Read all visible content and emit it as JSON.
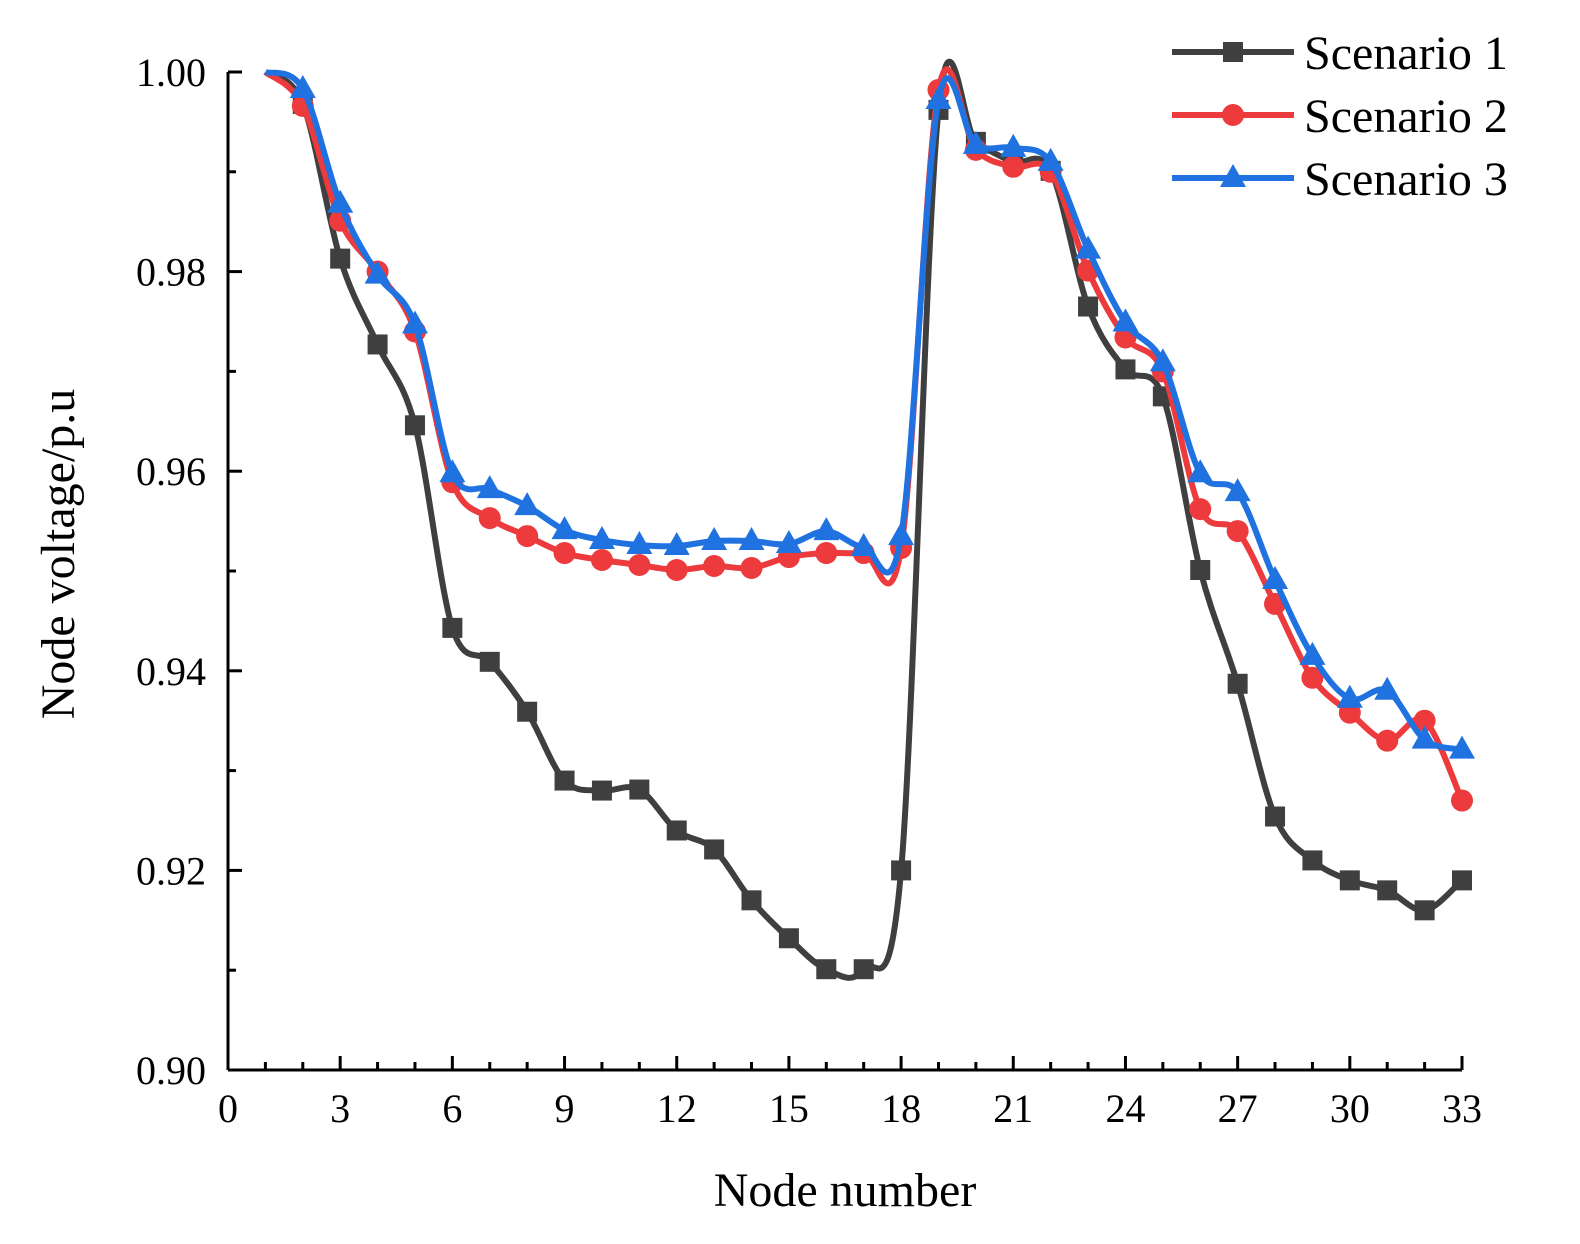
{
  "chart_data": {
    "type": "line",
    "title": "",
    "xlabel": "Node number",
    "ylabel": "Node voltage/p.u",
    "xlim": [
      0,
      33
    ],
    "ylim": [
      0.9,
      1.0
    ],
    "xticks": [
      0,
      3,
      6,
      9,
      12,
      15,
      18,
      21,
      24,
      27,
      30,
      33
    ],
    "xtick_labels": [
      "0",
      "3",
      "6",
      "9",
      "12",
      "15",
      "18",
      "21",
      "24",
      "27",
      "30",
      "33"
    ],
    "yticks": [
      0.9,
      0.92,
      0.94,
      0.96,
      0.98,
      1.0
    ],
    "ytick_labels": [
      "0.90",
      "0.92",
      "0.94",
      "0.96",
      "0.98",
      "1.00"
    ],
    "legend_position": "top-right",
    "x": [
      1,
      2,
      3,
      4,
      5,
      6,
      7,
      8,
      9,
      10,
      11,
      12,
      13,
      14,
      15,
      16,
      17,
      18,
      19,
      20,
      21,
      22,
      23,
      24,
      25,
      26,
      27,
      28,
      29,
      30,
      31,
      32,
      33
    ],
    "series": [
      {
        "name": "Scenario 1",
        "color": "#3f3f3f",
        "marker": "square",
        "values": [
          1.0,
          0.9968,
          0.9813,
          0.9727,
          0.9646,
          0.9443,
          0.9409,
          0.9359,
          0.929,
          0.928,
          0.9281,
          0.924,
          0.9221,
          0.917,
          0.9132,
          0.9101,
          0.9101,
          0.92,
          0.9962,
          0.993,
          0.991,
          0.9901,
          0.9765,
          0.9702,
          0.9675,
          0.9501,
          0.9387,
          0.9254,
          0.921,
          0.919,
          0.918,
          0.916,
          0.919
        ]
      },
      {
        "name": "Scenario 2",
        "color": "#ec3a3d",
        "marker": "circle",
        "values": [
          1.0,
          0.9966,
          0.9851,
          0.98,
          0.974,
          0.9589,
          0.9553,
          0.9535,
          0.9518,
          0.9511,
          0.9506,
          0.9501,
          0.9505,
          0.9503,
          0.9514,
          0.9518,
          0.9518,
          0.9523,
          0.9982,
          0.9922,
          0.9905,
          0.99,
          0.9801,
          0.9734,
          0.97,
          0.9562,
          0.954,
          0.9467,
          0.9393,
          0.9358,
          0.933,
          0.935,
          0.927
        ]
      },
      {
        "name": "Scenario 3",
        "color": "#1f72e0",
        "marker": "triangle",
        "values": [
          1.0,
          0.9983,
          0.9868,
          0.9797,
          0.9747,
          0.9598,
          0.9582,
          0.9565,
          0.9541,
          0.9531,
          0.9526,
          0.9525,
          0.953,
          0.953,
          0.9527,
          0.954,
          0.9524,
          0.9535,
          0.9972,
          0.9927,
          0.9924,
          0.991,
          0.9822,
          0.9749,
          0.9709,
          0.9598,
          0.9579,
          0.9491,
          0.9415,
          0.9372,
          0.938,
          0.9331,
          0.9321
        ]
      }
    ]
  }
}
